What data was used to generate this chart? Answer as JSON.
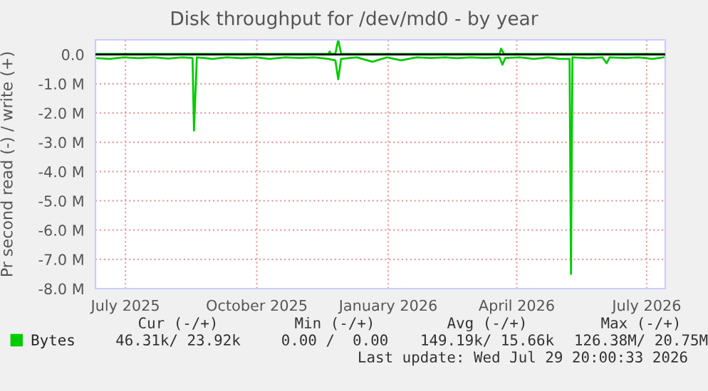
{
  "chart_data": {
    "type": "line",
    "title": "Disk throughput for /dev/md0 - by year",
    "ylabel": "Pr second read (-) / write (+)",
    "xlim": [
      "2025-06-25",
      "2026-07-29"
    ],
    "xticks": [
      {
        "value": "2025-07-16",
        "label": "July 2025"
      },
      {
        "value": "2025-10-16",
        "label": "October 2025"
      },
      {
        "value": "2026-01-16",
        "label": "January 2026"
      },
      {
        "value": "2026-04-16",
        "label": "April 2026"
      },
      {
        "value": "2026-07-16",
        "label": "July 2026"
      }
    ],
    "ylim": [
      -8,
      0.5
    ],
    "yticks": [
      {
        "value": 0,
        "label": "0.0"
      },
      {
        "value": -1,
        "label": "-1.0 M"
      },
      {
        "value": -2,
        "label": "-2.0 M"
      },
      {
        "value": -3,
        "label": "-3.0 M"
      },
      {
        "value": -4,
        "label": "-4.0 M"
      },
      {
        "value": -5,
        "label": "-5.0 M"
      },
      {
        "value": -6,
        "label": "-6.0 M"
      },
      {
        "value": -7,
        "label": "-7.0 M"
      },
      {
        "value": -8,
        "label": "-8.0 M"
      }
    ],
    "grid": true,
    "legend": "bottom",
    "marker": "none",
    "line_style": "solid",
    "ref_lines": [
      {
        "axis": "y",
        "value": 0,
        "color": "#000000"
      }
    ],
    "series": [
      {
        "name": "Bytes",
        "color": "#00cc00",
        "x": [
          "2025-06-25",
          "2025-07-05",
          "2025-07-15",
          "2025-07-25",
          "2025-08-05",
          "2025-08-15",
          "2025-08-25",
          "2025-09-01",
          "2025-09-02",
          "2025-09-04",
          "2025-09-15",
          "2025-09-25",
          "2025-10-05",
          "2025-10-15",
          "2025-10-25",
          "2025-11-05",
          "2025-11-15",
          "2025-11-25",
          "2025-12-05",
          "2025-12-10",
          "2025-12-12",
          "2025-12-14",
          "2025-12-25",
          "2026-01-05",
          "2026-01-15",
          "2026-01-25",
          "2026-02-05",
          "2026-02-15",
          "2026-02-25",
          "2026-03-05",
          "2026-03-15",
          "2026-03-25",
          "2026-04-04",
          "2026-04-06",
          "2026-04-08",
          "2026-04-18",
          "2026-04-28",
          "2026-05-08",
          "2026-05-16",
          "2026-05-23",
          "2026-05-24",
          "2026-05-25",
          "2026-06-05",
          "2026-06-15",
          "2026-06-18",
          "2026-06-20",
          "2026-07-01",
          "2026-07-10",
          "2026-07-20",
          "2026-07-28"
        ],
        "values": [
          -0.12,
          -0.15,
          -0.1,
          -0.13,
          -0.1,
          -0.14,
          -0.1,
          -0.12,
          -2.6,
          -0.1,
          -0.15,
          -0.1,
          -0.13,
          -0.1,
          -0.15,
          -0.1,
          -0.12,
          -0.1,
          -0.15,
          -0.2,
          -0.85,
          -0.15,
          -0.1,
          -0.25,
          -0.1,
          -0.2,
          -0.1,
          -0.12,
          -0.1,
          -0.13,
          -0.1,
          -0.12,
          -0.1,
          -0.35,
          -0.12,
          -0.1,
          -0.15,
          -0.1,
          -0.15,
          -0.15,
          -7.5,
          -0.1,
          -0.13,
          -0.1,
          -0.3,
          -0.1,
          -0.12,
          -0.1,
          -0.15,
          -0.1
        ]
      },
      {
        "color": "#00cc00",
        "x": [
          "2025-06-25",
          "2025-12-05",
          "2025-12-06",
          "2025-12-07",
          "2025-12-10",
          "2025-12-12",
          "2025-12-14",
          "2026-04-04",
          "2026-04-05",
          "2026-04-07",
          "2026-07-28"
        ],
        "values": [
          0.02,
          0.02,
          0.1,
          0.02,
          0.03,
          0.5,
          0.02,
          0.02,
          0.2,
          0.02,
          0.02
        ]
      }
    ],
    "annotations": [
      "Cur (-/+)",
      "Min (-/+)",
      "Avg (-/+)",
      "Max (-/+)",
      "46.31k/ 23.92k",
      "0.00 /  0.00",
      "149.19k/ 15.66k",
      "126.38M/ 20.75M",
      "Last update: Wed Jul 29 20:00:33 2026"
    ]
  }
}
